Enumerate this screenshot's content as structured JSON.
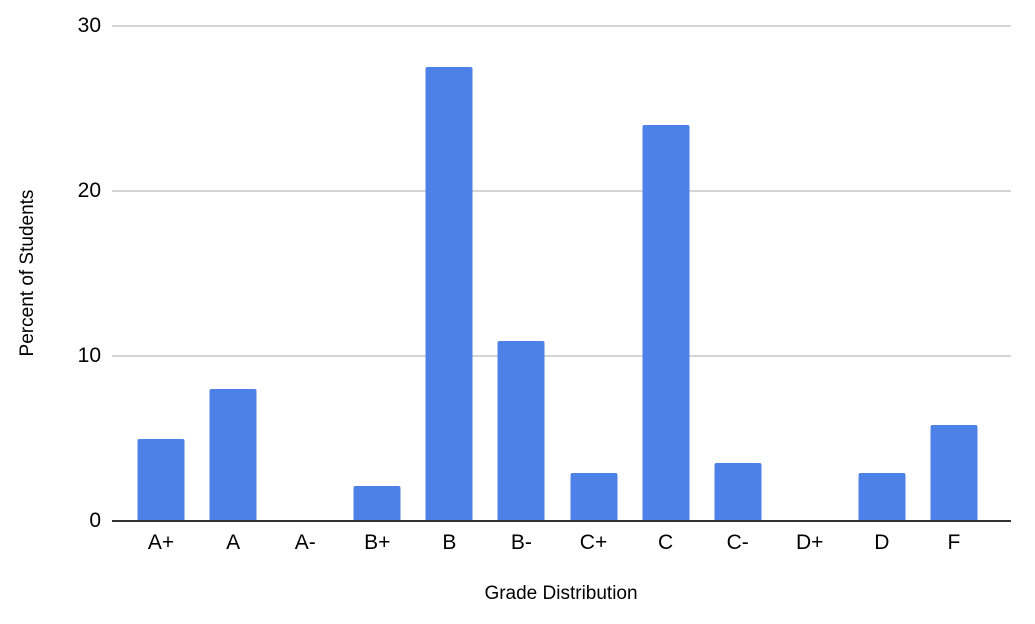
{
  "chart_data": {
    "type": "bar",
    "title": "",
    "xlabel": "Grade Distribution",
    "ylabel": "Percent of Students",
    "categories": [
      "A+",
      "A",
      "A-",
      "B+",
      "B",
      "B-",
      "C+",
      "C",
      "C-",
      "D+",
      "D",
      "F"
    ],
    "values": [
      5,
      8,
      0,
      2.1,
      27.5,
      10.9,
      2.9,
      24,
      3.5,
      0,
      2.9,
      5.8
    ],
    "ylim": [
      0,
      30
    ],
    "yticks": [
      0,
      10,
      20,
      30
    ],
    "grid": true,
    "legend": false
  },
  "colors": {
    "bar": "#4E81E8",
    "gridline": "#D5D5D5",
    "axis_line": "#333333",
    "text": "#000000",
    "background": "#FFFFFF"
  }
}
